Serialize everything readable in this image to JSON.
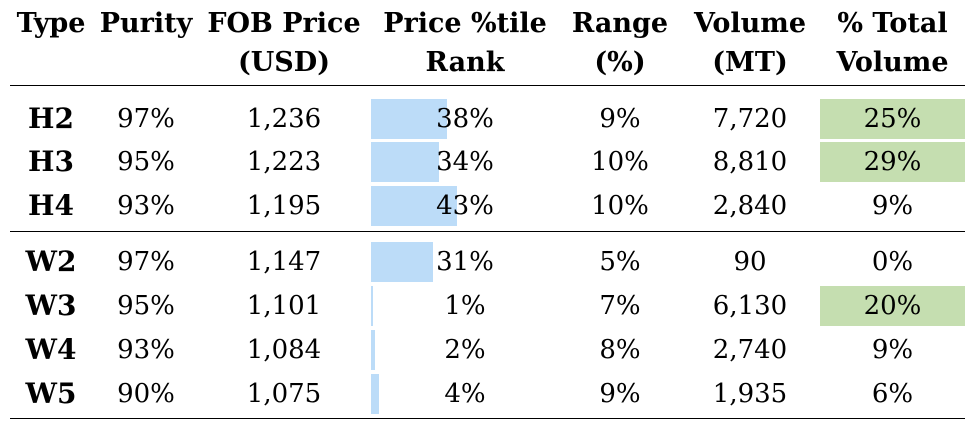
{
  "colors": {
    "bar": "#bcdcf8",
    "highlight": "#c5deb0"
  },
  "headers": {
    "type": "Type",
    "purity": "Purity",
    "fob_1": "FOB Price",
    "fob_2": "(USD)",
    "rank_1": "Price %tile",
    "rank_2": "Rank",
    "range_1": "Range",
    "range_2": "(%)",
    "volume_1": "Volume",
    "volume_2": "(MT)",
    "pct_1": "% Total",
    "pct_2": "Volume"
  },
  "rows": [
    {
      "type": "H2",
      "purity": "97%",
      "fob": "1,236",
      "rank": "38%",
      "rank_value": 38,
      "range": "9%",
      "volume": "7,720",
      "pct": "25%",
      "highlight": true
    },
    {
      "type": "H3",
      "purity": "95%",
      "fob": "1,223",
      "rank": "34%",
      "rank_value": 34,
      "range": "10%",
      "volume": "8,810",
      "pct": "29%",
      "highlight": true
    },
    {
      "type": "H4",
      "purity": "93%",
      "fob": "1,195",
      "rank": "43%",
      "rank_value": 43,
      "range": "10%",
      "volume": "2,840",
      "pct": "9%",
      "highlight": false
    },
    {
      "type": "W2",
      "purity": "97%",
      "fob": "1,147",
      "rank": "31%",
      "rank_value": 31,
      "range": "5%",
      "volume": "90",
      "pct": "0%",
      "highlight": false
    },
    {
      "type": "W3",
      "purity": "95%",
      "fob": "1,101",
      "rank": "1%",
      "rank_value": 1,
      "range": "7%",
      "volume": "6,130",
      "pct": "20%",
      "highlight": true
    },
    {
      "type": "W4",
      "purity": "93%",
      "fob": "1,084",
      "rank": "2%",
      "rank_value": 2,
      "range": "8%",
      "volume": "2,740",
      "pct": "9%",
      "highlight": false
    },
    {
      "type": "W5",
      "purity": "90%",
      "fob": "1,075",
      "rank": "4%",
      "rank_value": 4,
      "range": "9%",
      "volume": "1,935",
      "pct": "6%",
      "highlight": false
    }
  ],
  "chart_data": {
    "type": "table",
    "columns": [
      "Type",
      "Purity",
      "FOB Price (USD)",
      "Price %tile Rank",
      "Range (%)",
      "Volume (MT)",
      "% Total Volume"
    ],
    "rows": [
      [
        "H2",
        "97%",
        1236,
        38,
        9,
        7720,
        25
      ],
      [
        "H3",
        "95%",
        1223,
        34,
        10,
        8810,
        29
      ],
      [
        "H4",
        "93%",
        1195,
        43,
        10,
        2840,
        9
      ],
      [
        "W2",
        "97%",
        1147,
        31,
        5,
        90,
        0
      ],
      [
        "W3",
        "95%",
        1101,
        1,
        7,
        6130,
        20
      ],
      [
        "W4",
        "93%",
        1084,
        2,
        8,
        2740,
        9
      ],
      [
        "W5",
        "90%",
        1075,
        4,
        9,
        1935,
        6
      ]
    ]
  }
}
